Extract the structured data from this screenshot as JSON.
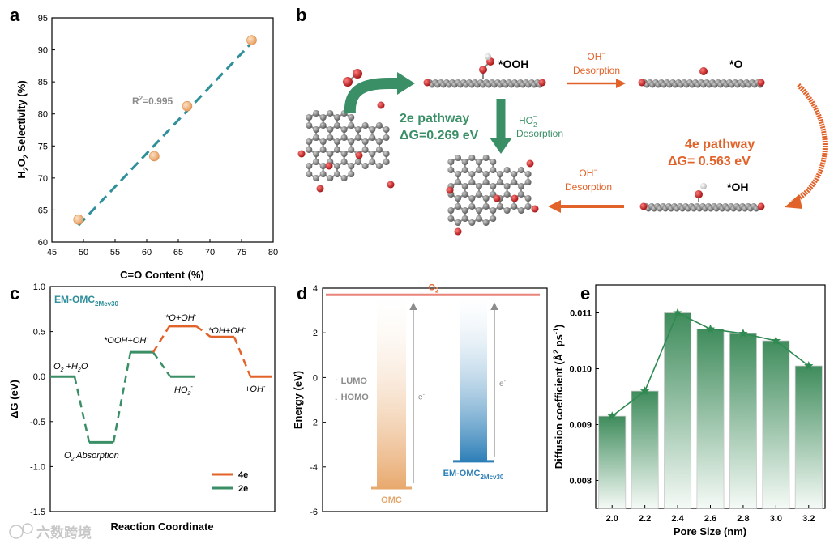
{
  "panel_labels": {
    "a": "a",
    "b": "b",
    "c": "c",
    "d": "d",
    "e": "e"
  },
  "colors": {
    "teal": "#2f8f9a",
    "green": "#3a8f67",
    "orange": "#e2632a",
    "peach": "#f2b47e",
    "axis": "#000000",
    "gray": "#8c8c8c",
    "molecule_c": "#6e6e6e",
    "molecule_o": "#c8191a",
    "molecule_h": "#f0f0f0"
  },
  "watermark": "六数跨境",
  "chart_data": [
    {
      "panel": "a",
      "type": "scatter",
      "title": "",
      "xlabel": "C=O Content (%)",
      "ylabel_main": "H",
      "ylabel_sub": "2",
      "ylabel_mid": "O",
      "ylabel_sub2": "2",
      "ylabel_tail": " Selectivity (%)",
      "xlim": [
        45,
        80
      ],
      "ylim": [
        60,
        95
      ],
      "xticks": [
        45,
        50,
        55,
        60,
        65,
        70,
        75,
        80
      ],
      "yticks": [
        60,
        65,
        70,
        75,
        80,
        85,
        90,
        95
      ],
      "points": [
        {
          "x": 49.2,
          "y": 63.5
        },
        {
          "x": 61.2,
          "y": 73.4
        },
        {
          "x": 66.4,
          "y": 81.2
        },
        {
          "x": 76.6,
          "y": 91.5
        }
      ],
      "fit_line": {
        "x": [
          49.2,
          76.6
        ],
        "y": [
          62.6,
          91.1
        ]
      },
      "annotation_main": "R",
      "annotation_sup": "2",
      "annotation_tail": "=0.995"
    },
    {
      "panel": "c",
      "type": "line",
      "subtype": "free-energy-diagram",
      "title_main": "EM-OMC",
      "title_sub": "2Mcv30",
      "xlabel": "Reaction Coordinate",
      "ylabel": "ΔG (eV)",
      "ylim": [
        -1.5,
        1.0
      ],
      "yticks": [
        -1.5,
        -1.0,
        -0.5,
        0.0,
        0.5,
        1.0
      ],
      "series": [
        {
          "name": "2e",
          "steps": [
            {
              "label": "O2 +H2O",
              "value": 0.0
            },
            {
              "label": "O2 Absorption",
              "value": -0.73
            },
            {
              "label": "*OOH+OH-",
              "value": 0.27
            },
            {
              "label": "HO2-",
              "value": 0.0
            }
          ]
        },
        {
          "name": "4e",
          "steps": [
            {
              "label": "*OOH+OH-",
              "value": 0.27
            },
            {
              "label": "*O+OH-",
              "value": 0.56
            },
            {
              "label": "*OH+OH-",
              "value": 0.44
            },
            {
              "label": "+OH-",
              "value": 0.0
            }
          ]
        }
      ],
      "step_labels": {
        "o2h2o_a": "O",
        "o2h2o_b": "2",
        "o2h2o_c": " +H",
        "o2h2o_d": "2",
        "o2h2o_e": "O",
        "abs_a": "O",
        "abs_b": "2",
        "abs_c": " Absorption",
        "ooh_a": "*OOH+OH",
        "ooh_b": "-",
        "o_a": "*O+OH",
        "o_b": "-",
        "oh_a": "*OH+OH",
        "oh_b": "-",
        "ho2_a": "HO",
        "ho2_b": "2",
        "ho2_c": "-",
        "ohm_a": "+OH",
        "ohm_b": "-"
      },
      "legend": [
        "4e",
        "2e"
      ]
    },
    {
      "panel": "d",
      "type": "bar",
      "subtype": "energy-level-diagram",
      "ylabel": "Energy (eV)",
      "ylim": [
        -6,
        4
      ],
      "yticks": [
        -6,
        -4,
        -2,
        0,
        2,
        4
      ],
      "o2_level": 3.7,
      "o2_label_main": "O",
      "o2_label_sub": "2",
      "lumo_label": "LUMO",
      "homo_label": "HOMO",
      "electron_label": "e",
      "electron_sup": "-",
      "materials": [
        {
          "name_main": "OMC",
          "name_sub": "",
          "level": -4.95,
          "top": 3.7
        },
        {
          "name_main": "EM-OMC",
          "name_sub": "2Mcv30",
          "level": -3.75,
          "top": 3.7
        }
      ]
    },
    {
      "panel": "e",
      "type": "bar",
      "series_overlay": "line",
      "xlabel": "Pore Size (nm)",
      "ylabel_main": "Diffusion coefficient (Å",
      "ylabel_sup1": "2",
      "ylabel_mid": " ps",
      "ylabel_sup2": "-1",
      "ylabel_tail": ")",
      "categories": [
        "2.0",
        "2.2",
        "2.4",
        "2.6",
        "2.8",
        "3.0",
        "3.2"
      ],
      "values": [
        0.00915,
        0.0096,
        0.011,
        0.01071,
        0.01063,
        0.0105,
        0.01005
      ],
      "ylim": [
        0.0075,
        0.0115
      ],
      "yticks": [
        "0.008",
        "0.009",
        "0.010",
        "0.011"
      ],
      "ytick_values": [
        0.008,
        0.009,
        0.01,
        0.011
      ]
    }
  ],
  "panel_b": {
    "ooh_label": "*OOH",
    "o_label": "*O",
    "oh_label": "*OH",
    "oh_desorption_1_a": "OH",
    "oh_desorption_1_b": "−",
    "oh_desorption_1_c": "Desorption",
    "oh_desorption_2_a": "OH",
    "oh_desorption_2_b": "−",
    "oh_desorption_2_c": "Desorption",
    "ho2_desorption_a": "HO",
    "ho2_desorption_b": "2",
    "ho2_desorption_c": "−",
    "ho2_desorption_d": "Desorption",
    "two_e_title": "2e pathway",
    "two_e_dg": "ΔG=0.269 eV",
    "four_e_title": "4e pathway",
    "four_e_dg": "ΔG= 0.563 eV"
  }
}
